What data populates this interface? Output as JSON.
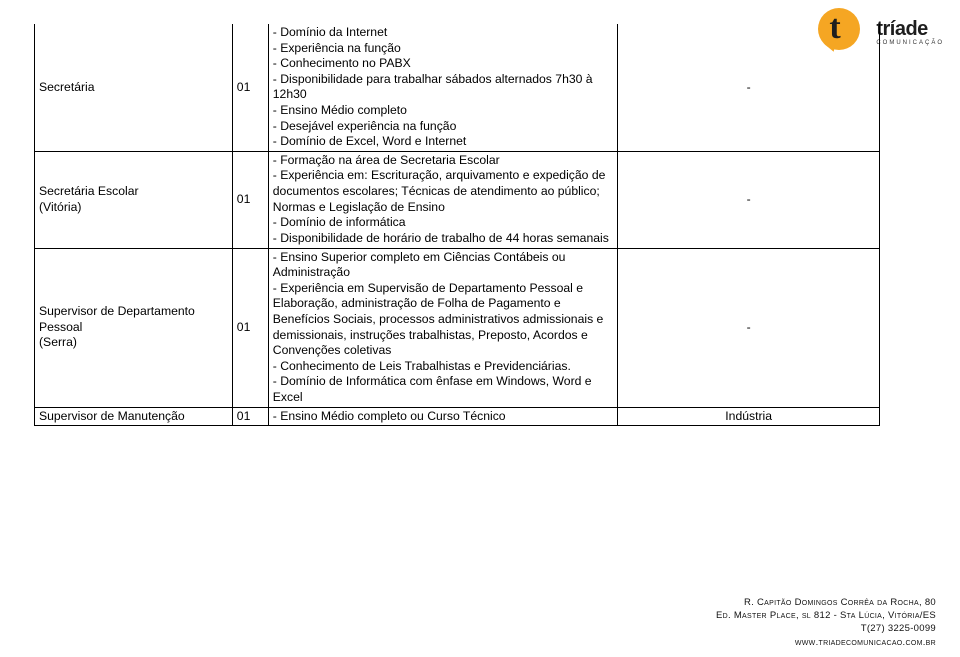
{
  "logo": {
    "word": "tríade",
    "sub": "COMUNICAÇÃO"
  },
  "table": {
    "rows": [
      {
        "role": "Secretária",
        "qty": "01",
        "desc": "- Domínio da Internet\n- Experiência na função\n- Conhecimento no PABX\n- Disponibilidade para trabalhar sábados alternados 7h30 à 12h30\n- Ensino Médio completo\n- Desejável experiência na função\n- Domínio de Excel, Word e Internet",
        "extra": "-"
      },
      {
        "role": "Secretária Escolar\n(Vitória)",
        "qty": "01",
        "desc": "- Formação na área de Secretaria Escolar\n- Experiência em: Escrituração, arquivamento e expedição de documentos escolares; Técnicas de atendimento ao público; Normas e Legislação de Ensino\n- Domínio de informática\n- Disponibilidade de horário de trabalho de 44 horas semanais",
        "extra": "-"
      },
      {
        "role": "Supervisor de Departamento Pessoal\n(Serra)",
        "qty": "01",
        "desc": "- Ensino Superior completo em Ciências Contábeis ou Administração\n- Experiência em  Supervisão de Departamento Pessoal e Elaboração, administração de Folha de Pagamento e Benefícios Sociais, processos administrativos admissionais e demissionais, instruções trabalhistas, Preposto, Acordos e Convenções coletivas\n- Conhecimento de Leis Trabalhistas e Previdenciárias.\n- Domínio de Informática com ênfase em Windows, Word e Excel",
        "extra": "-"
      },
      {
        "role": "Supervisor de Manutenção",
        "qty": "01",
        "desc": "- Ensino  Médio  completo  ou  Curso  Técnico",
        "extra": "Indústria"
      }
    ]
  },
  "footer": {
    "l1": "R. Capitão Domingos Corrêa da Rocha, 80",
    "l2": "Ed. Master Place, sl 812 - Sta Lúcia, Vitória/ES",
    "l3": "T(27) 3225-0099",
    "l4": "www.triadecomunicacao.com.br"
  }
}
